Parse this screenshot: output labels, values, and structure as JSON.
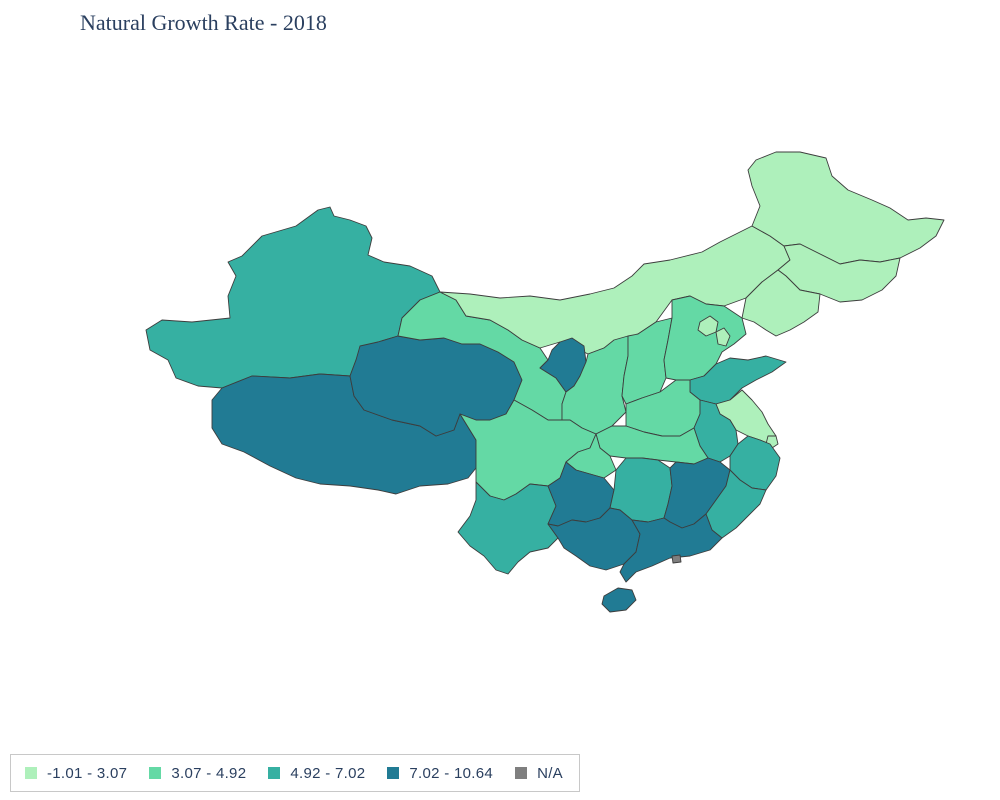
{
  "title": "Natural Growth Rate - 2018",
  "colors": {
    "c1": "#aef0bb",
    "c2": "#64d9a5",
    "c3": "#36b0a2",
    "c4": "#217b94",
    "na": "#7f7f7f"
  },
  "legend": [
    {
      "label": "-1.01 - 3.07",
      "color": "#aef0bb"
    },
    {
      "label": "3.07 - 4.92",
      "color": "#64d9a5"
    },
    {
      "label": "4.92 - 7.02",
      "color": "#36b0a2"
    },
    {
      "label": "7.02 - 10.64",
      "color": "#217b94"
    },
    {
      "label": "N/A",
      "color": "#7f7f7f"
    }
  ],
  "regions": [
    {
      "id": "xinjiang",
      "class": "4.92 - 7.02"
    },
    {
      "id": "tibet",
      "class": "7.02 - 10.64"
    },
    {
      "id": "qinghai",
      "class": "7.02 - 10.64"
    },
    {
      "id": "gansu",
      "class": "3.07 - 4.92"
    },
    {
      "id": "inner-mongolia",
      "class": "-1.01 - 3.07"
    },
    {
      "id": "heilongjiang",
      "class": "-1.01 - 3.07"
    },
    {
      "id": "jilin",
      "class": "-1.01 - 3.07"
    },
    {
      "id": "liaoning",
      "class": "-1.01 - 3.07"
    },
    {
      "id": "ningxia",
      "class": "7.02 - 10.64"
    },
    {
      "id": "shaanxi",
      "class": "3.07 - 4.92"
    },
    {
      "id": "shanxi",
      "class": "3.07 - 4.92"
    },
    {
      "id": "hebei",
      "class": "3.07 - 4.92"
    },
    {
      "id": "beijing",
      "class": "-1.01 - 3.07"
    },
    {
      "id": "tianjin",
      "class": "-1.01 - 3.07"
    },
    {
      "id": "shandong",
      "class": "4.92 - 7.02"
    },
    {
      "id": "henan",
      "class": "3.07 - 4.92"
    },
    {
      "id": "jiangsu",
      "class": "-1.01 - 3.07"
    },
    {
      "id": "shanghai",
      "class": "-1.01 - 3.07"
    },
    {
      "id": "anhui",
      "class": "4.92 - 7.02"
    },
    {
      "id": "hubei",
      "class": "3.07 - 4.92"
    },
    {
      "id": "sichuan",
      "class": "3.07 - 4.92"
    },
    {
      "id": "chongqing",
      "class": "3.07 - 4.92"
    },
    {
      "id": "yunnan",
      "class": "4.92 - 7.02"
    },
    {
      "id": "guizhou",
      "class": "7.02 - 10.64"
    },
    {
      "id": "hunan",
      "class": "4.92 - 7.02"
    },
    {
      "id": "jiangxi",
      "class": "7.02 - 10.64"
    },
    {
      "id": "zhejiang",
      "class": "4.92 - 7.02"
    },
    {
      "id": "fujian",
      "class": "4.92 - 7.02"
    },
    {
      "id": "guangxi",
      "class": "7.02 - 10.64"
    },
    {
      "id": "guangdong",
      "class": "7.02 - 10.64"
    },
    {
      "id": "hainan",
      "class": "7.02 - 10.64"
    },
    {
      "id": "hong-kong-macau",
      "class": "N/A"
    }
  ]
}
